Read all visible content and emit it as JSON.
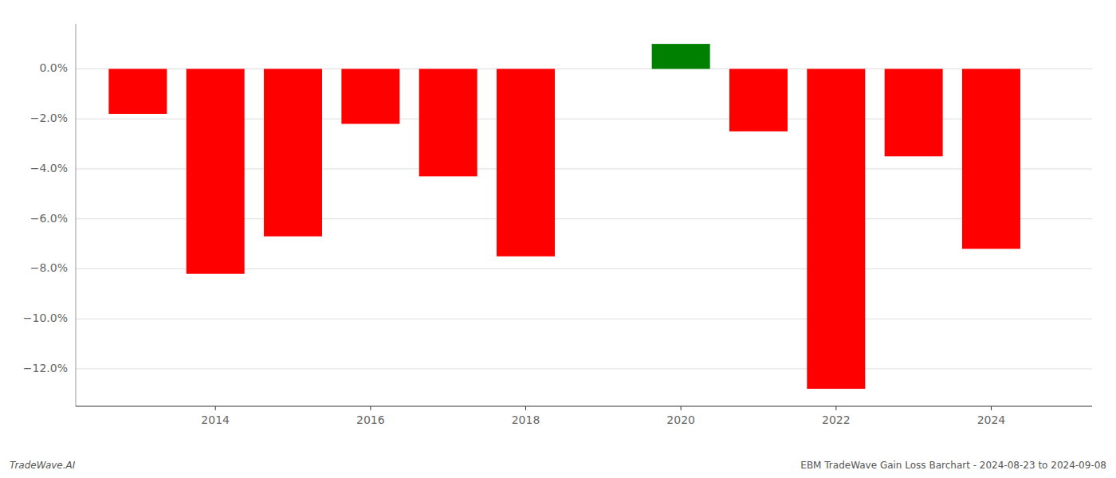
{
  "chart_data": {
    "type": "bar",
    "x": [
      2013,
      2014,
      2015,
      2016,
      2017,
      2018,
      2019,
      2020,
      2021,
      2022,
      2023,
      2024
    ],
    "values": [
      -1.8,
      -8.2,
      -6.7,
      -2.2,
      -4.3,
      -7.5,
      0.0,
      1.0,
      -2.5,
      -12.8,
      -3.5,
      -7.2
    ],
    "colors": [
      "#ff0000",
      "#ff0000",
      "#ff0000",
      "#ff0000",
      "#ff0000",
      "#ff0000",
      "#ff0000",
      "#008000",
      "#ff0000",
      "#ff0000",
      "#ff0000",
      "#ff0000"
    ],
    "xlim": [
      2012.2,
      2025.3
    ],
    "xticks": [
      2014,
      2016,
      2018,
      2020,
      2022,
      2024
    ],
    "ylim": [
      -13.5,
      1.8
    ],
    "yticks": [
      {
        "value": 0.0,
        "label": "0.0%"
      },
      {
        "value": -2.0,
        "label": "−2.0%"
      },
      {
        "value": -4.0,
        "label": "−4.0%"
      },
      {
        "value": -6.0,
        "label": "−6.0%"
      },
      {
        "value": -8.0,
        "label": "−8.0%"
      },
      {
        "value": -10.0,
        "label": "−10.0%"
      },
      {
        "value": -12.0,
        "label": "−12.0%"
      }
    ],
    "grid": true,
    "annotations": [
      "TradeWave.AI",
      "EBM TradeWave Gain Loss Barchart - 2024-08-23 to 2024-09-08"
    ]
  }
}
